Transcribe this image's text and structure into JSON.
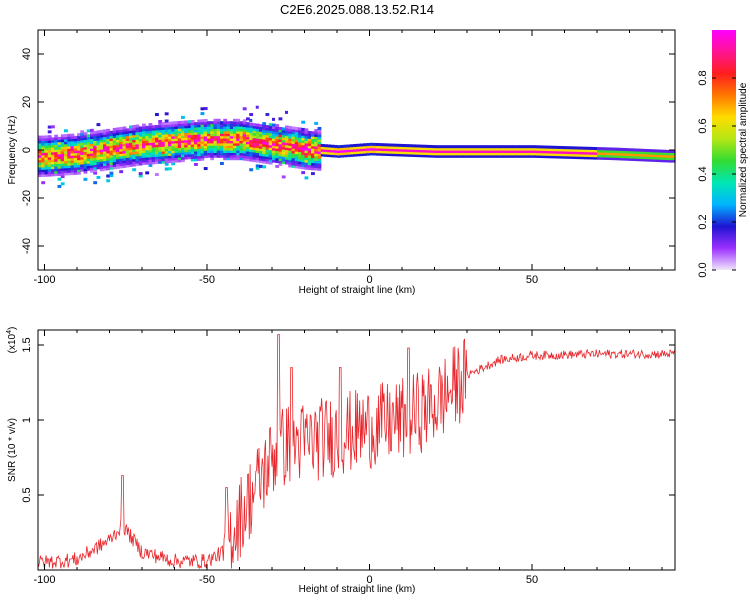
{
  "figure_title": "C2E6.2025.088.13.52.R14",
  "chart_data": [
    {
      "type": "heatmap",
      "title": "",
      "xlabel": "Height of straight line (km)",
      "ylabel": "Frequency (Hz)",
      "xlim": [
        -102,
        94
      ],
      "ylim": [
        -50,
        50
      ],
      "xticks": [
        -100,
        -50,
        0,
        50
      ],
      "yticks": [
        -40,
        -20,
        0,
        20,
        40
      ],
      "colorbar": {
        "label": "Normalized spectral amplitude",
        "range": [
          0,
          1
        ],
        "ticks": [
          0.0,
          0.2,
          0.4,
          0.6,
          0.8
        ],
        "colors": [
          "#f0e6fa",
          "#9b30ff",
          "#1e14d2",
          "#00b4ff",
          "#00e6b4",
          "#32dc32",
          "#b4e614",
          "#ffdc00",
          "#ff7800",
          "#ff1e1e",
          "#ff1493",
          "#ff00ff"
        ]
      },
      "ridge": [
        {
          "x": -101,
          "f": -3
        },
        {
          "x": -90,
          "f": -2
        },
        {
          "x": -80,
          "f": 0
        },
        {
          "x": -70,
          "f": 2
        },
        {
          "x": -60,
          "f": 3
        },
        {
          "x": -50,
          "f": 4
        },
        {
          "x": -40,
          "f": 4
        },
        {
          "x": -30,
          "f": 2
        },
        {
          "x": -20,
          "f": 0
        },
        {
          "x": -10,
          "f": -1
        },
        {
          "x": 0,
          "f": 0
        },
        {
          "x": 20,
          "f": -1
        },
        {
          "x": 50,
          "f": -1
        },
        {
          "x": 75,
          "f": -2
        },
        {
          "x": 92,
          "f": -3
        }
      ]
    },
    {
      "type": "line",
      "title": "",
      "xlabel": "Height of straight line (km)",
      "ylabel": "SNR (10 * v/v)",
      "y_multiplier": "(x10",
      "y_multiplier_exp": "4",
      "y_multiplier_close": ")",
      "xlim": [
        -102,
        94
      ],
      "ylim": [
        0,
        1.6
      ],
      "xticks": [
        -100,
        -50,
        0,
        50
      ],
      "yticks": [
        0.5,
        1.0,
        1.5
      ],
      "color": "#e8262b",
      "envelope": [
        {
          "x": -101,
          "y": 0.05
        },
        {
          "x": -90,
          "y": 0.07
        },
        {
          "x": -80,
          "y": 0.2
        },
        {
          "x": -76,
          "y": 0.3
        },
        {
          "x": -70,
          "y": 0.12
        },
        {
          "x": -60,
          "y": 0.06
        },
        {
          "x": -50,
          "y": 0.06
        },
        {
          "x": -45,
          "y": 0.12
        },
        {
          "x": -40,
          "y": 0.35
        },
        {
          "x": -35,
          "y": 0.55
        },
        {
          "x": -30,
          "y": 0.75
        },
        {
          "x": -25,
          "y": 0.85
        },
        {
          "x": -20,
          "y": 0.85
        },
        {
          "x": -10,
          "y": 0.9
        },
        {
          "x": 0,
          "y": 0.95
        },
        {
          "x": 10,
          "y": 1.0
        },
        {
          "x": 20,
          "y": 1.1
        },
        {
          "x": 30,
          "y": 1.3
        },
        {
          "x": 40,
          "y": 1.4
        },
        {
          "x": 50,
          "y": 1.43
        },
        {
          "x": 70,
          "y": 1.44
        },
        {
          "x": 93,
          "y": 1.44
        }
      ],
      "peaks": [
        {
          "x": -76,
          "y": 0.63
        },
        {
          "x": -44,
          "y": 0.55
        },
        {
          "x": -28,
          "y": 1.57
        },
        {
          "x": -24,
          "y": 1.35
        },
        {
          "x": -9,
          "y": 1.35
        },
        {
          "x": 12,
          "y": 1.48
        }
      ]
    }
  ]
}
